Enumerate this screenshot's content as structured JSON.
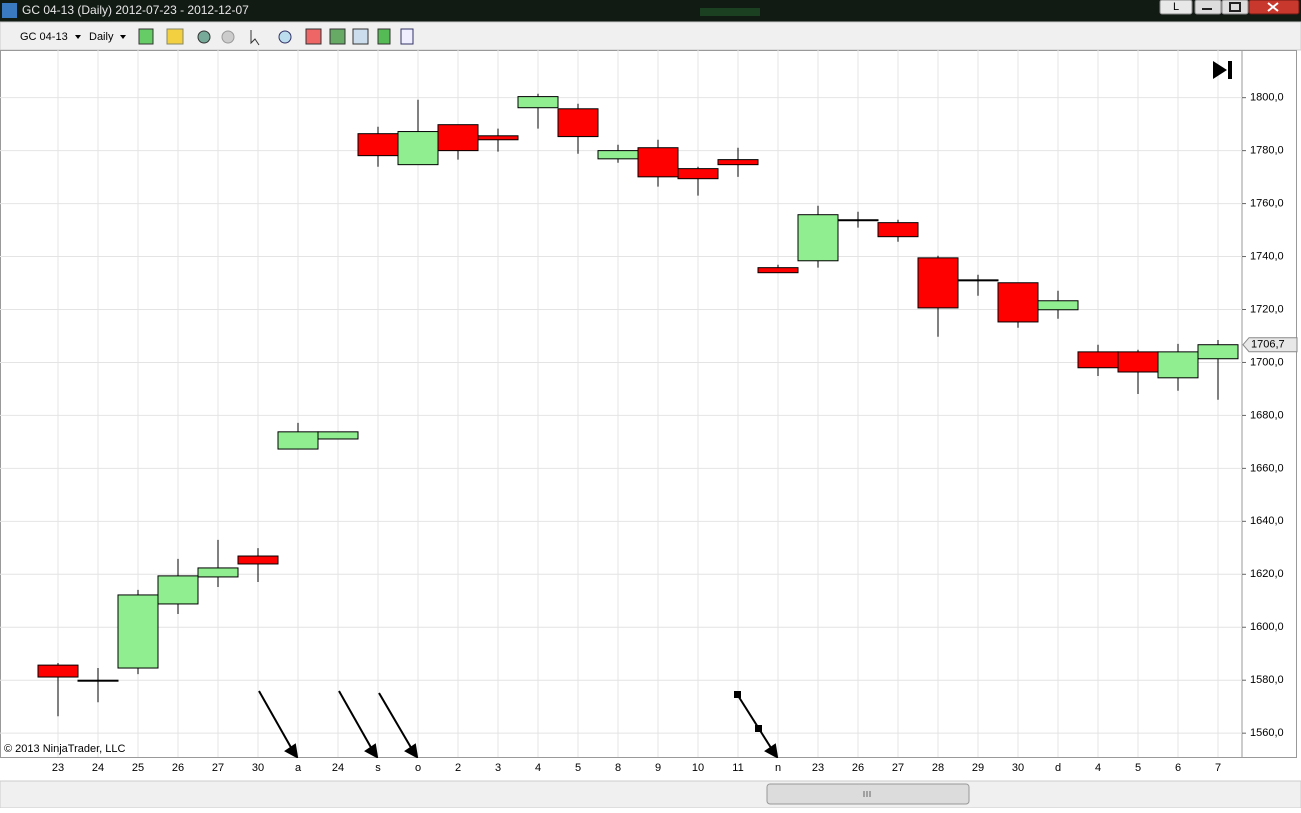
{
  "window": {
    "title": "GC 04-13 (Daily) 2012-07-23 - 2012-12-07",
    "button": "L"
  },
  "toolbar": {
    "instrument": "GC 04-13",
    "interval": "Daily"
  },
  "copyright": "© 2013 NinjaTrader, LLC",
  "chart_data": {
    "type": "candlestick",
    "categories": [
      "23",
      "24",
      "25",
      "26",
      "27",
      "30",
      "a",
      "24",
      "s",
      "o",
      "2",
      "3",
      "4",
      "5",
      "8",
      "9",
      "10",
      "11",
      "n",
      "23",
      "26",
      "27",
      "28",
      "29",
      "30",
      "d",
      "4",
      "5",
      "6",
      "7"
    ],
    "open": [
      1585.7,
      1580.0,
      1584.6,
      1608.8,
      1619.0,
      1626.9,
      1667.3,
      1671.1,
      1786.4,
      1774.7,
      1789.8,
      1785.6,
      1796.2,
      1795.8,
      1776.9,
      1781.1,
      1773.2,
      1776.6,
      1735.8,
      1738.4,
      1753.9,
      1752.8,
      1739.5,
      1731.2,
      1730.1,
      1719.9,
      1704.0,
      1704.0,
      1694.2,
      1701.4
    ],
    "high": [
      1586.5,
      1584.6,
      1614.1,
      1625.8,
      1633.0,
      1629.9,
      1677.2,
      1673.8,
      1789.0,
      1799.2,
      1789.8,
      1788.3,
      1801.5,
      1797.7,
      1782.2,
      1784.1,
      1773.9,
      1781.1,
      1736.9,
      1759.2,
      1756.9,
      1753.9,
      1740.3,
      1733.1,
      1730.1,
      1727.1,
      1706.7,
      1704.8,
      1707.0,
      1708.5
    ],
    "low": [
      1566.4,
      1571.7,
      1582.3,
      1605.0,
      1615.2,
      1617.1,
      1667.3,
      1671.1,
      1773.9,
      1774.7,
      1776.6,
      1779.6,
      1788.3,
      1778.8,
      1775.4,
      1766.4,
      1763.0,
      1770.1,
      1733.9,
      1735.8,
      1750.9,
      1745.6,
      1709.7,
      1725.2,
      1713.1,
      1716.5,
      1694.9,
      1688.1,
      1689.3,
      1685.9
    ],
    "close": [
      1581.2,
      1580.0,
      1612.2,
      1619.4,
      1622.4,
      1623.9,
      1673.8,
      1673.8,
      1778.1,
      1787.2,
      1780.0,
      1784.1,
      1800.4,
      1785.3,
      1780.0,
      1770.1,
      1769.4,
      1774.7,
      1733.9,
      1755.8,
      1753.9,
      1747.5,
      1720.6,
      1731.2,
      1715.3,
      1723.3,
      1698.0,
      1696.4,
      1704.0,
      1706.7
    ],
    "up_color": "#90ee90",
    "down_color": "#ff0000",
    "ylim": [
      1551,
      1818
    ],
    "yticks": [
      {
        "value": 1560,
        "label": "1560,0"
      },
      {
        "value": 1580,
        "label": "1580,0"
      },
      {
        "value": 1600,
        "label": "1600,0"
      },
      {
        "value": 1620,
        "label": "1620,0"
      },
      {
        "value": 1640,
        "label": "1640,0"
      },
      {
        "value": 1660,
        "label": "1660,0"
      },
      {
        "value": 1680,
        "label": "1680,0"
      },
      {
        "value": 1700,
        "label": "1700,0"
      },
      {
        "value": 1720,
        "label": "1720,0"
      },
      {
        "value": 1740,
        "label": "1740,0"
      },
      {
        "value": 1760,
        "label": "1760,0"
      },
      {
        "value": 1780,
        "label": "1780,0"
      },
      {
        "value": 1800,
        "label": "1800,0"
      }
    ],
    "last_price": {
      "value": 1706.7,
      "label": "1706,7"
    },
    "grid": true
  }
}
